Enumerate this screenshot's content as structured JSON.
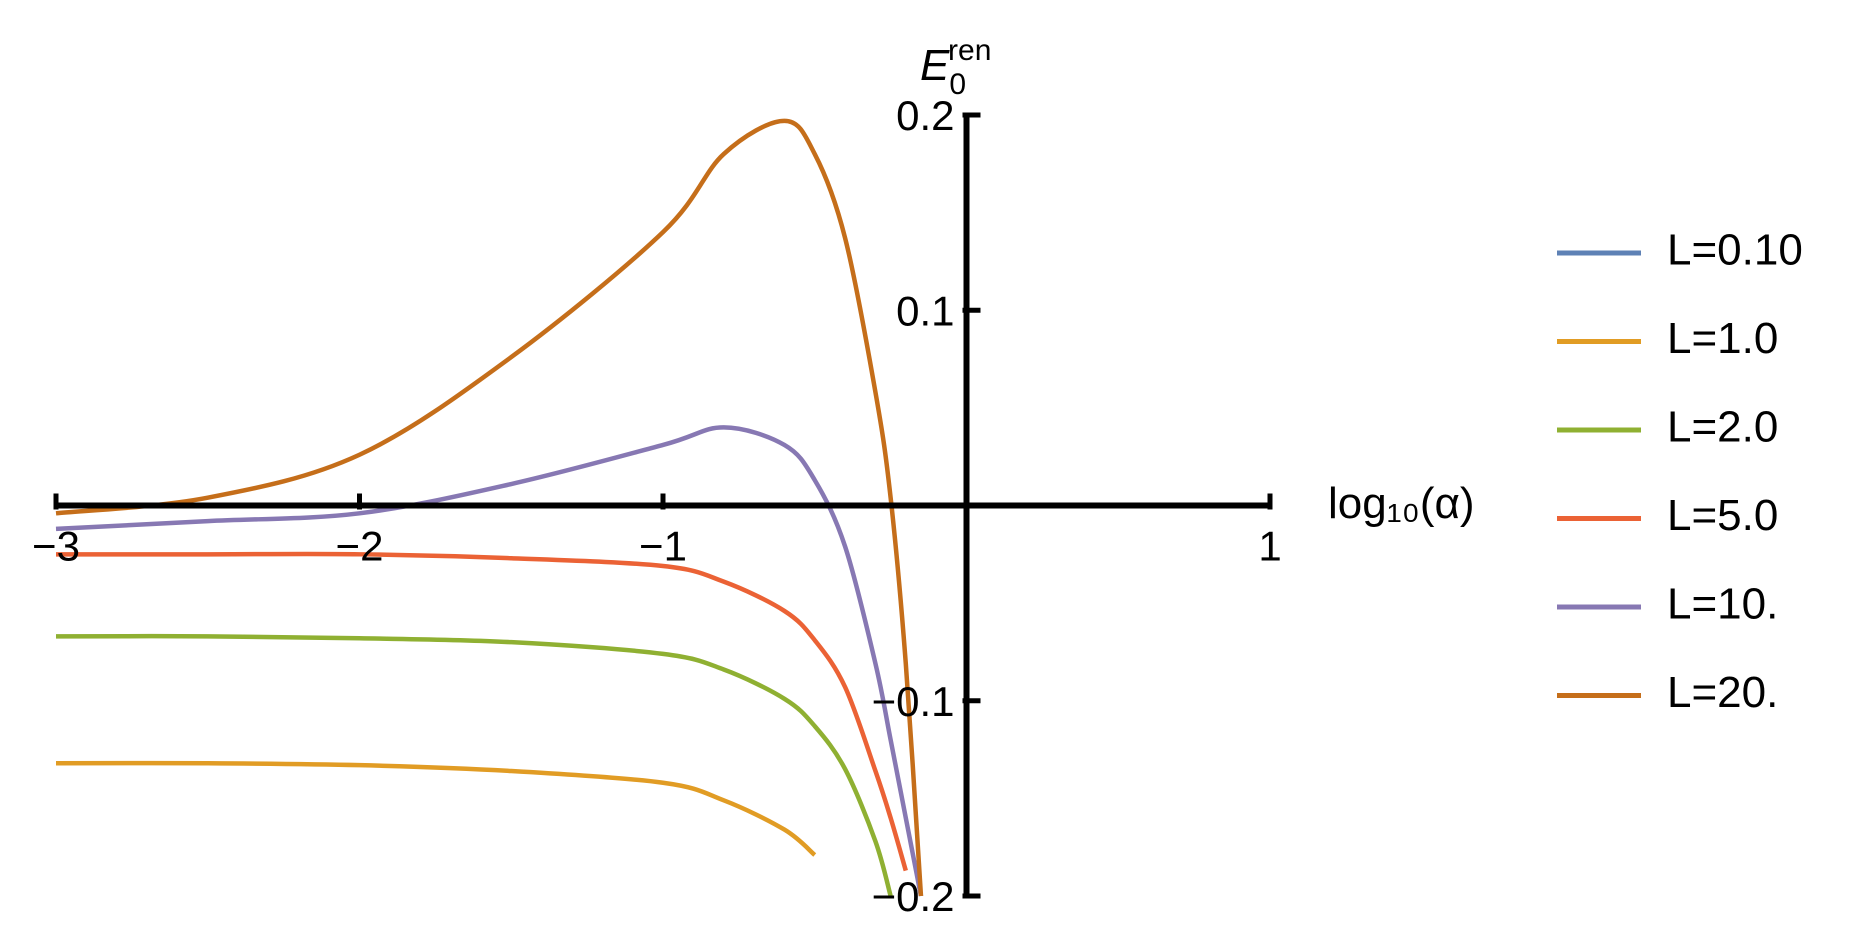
{
  "chart_data": {
    "type": "line",
    "xlabel": "log₁₀(α)",
    "ylabel": {
      "symbol": "E",
      "sub": "0",
      "sup": "ren"
    },
    "x": [
      -3,
      -2.5,
      -2,
      -1.5,
      -1,
      -0.8,
      -0.6,
      -0.5,
      -0.4,
      -0.3,
      -0.25,
      -0.2,
      -0.15
    ],
    "series": [
      {
        "name": "L=0.10",
        "color": "#5e81b5",
        "values": [
          null,
          null,
          null,
          null,
          null,
          null,
          null,
          null,
          null,
          null,
          null,
          null,
          null
        ]
      },
      {
        "name": "L=1.0",
        "color": "#e19c24",
        "values": [
          -0.132,
          -0.132,
          -0.133,
          -0.136,
          -0.142,
          -0.151,
          -0.166,
          -0.179,
          null,
          null,
          null,
          null,
          null
        ]
      },
      {
        "name": "L=2.0",
        "color": "#8fb032",
        "values": [
          -0.067,
          -0.067,
          -0.068,
          -0.07,
          -0.076,
          -0.084,
          -0.099,
          -0.113,
          -0.135,
          -0.172,
          -0.2,
          null,
          null
        ]
      },
      {
        "name": "L=5.0",
        "color": "#eb6235",
        "values": [
          -0.025,
          -0.025,
          -0.025,
          -0.027,
          -0.031,
          -0.039,
          -0.054,
          -0.069,
          -0.093,
          -0.136,
          -0.16,
          -0.187,
          null
        ]
      },
      {
        "name": "L=10.",
        "color": "#8778b3",
        "values": [
          -0.012,
          -0.008,
          -0.004,
          0.011,
          0.031,
          0.04,
          0.031,
          0.013,
          -0.021,
          -0.081,
          -0.12,
          -0.16,
          -0.2
        ]
      },
      {
        "name": "L=20.",
        "color": "#c56e1a",
        "values": [
          -0.004,
          0.004,
          0.026,
          0.076,
          0.14,
          0.18,
          0.197,
          0.18,
          0.137,
          0.058,
          0.004,
          -0.081,
          -0.2
        ]
      }
    ],
    "xlim": [
      -3,
      1
    ],
    "ylim": [
      -0.2,
      0.2
    ],
    "xticks": [
      {
        "value": -3,
        "label": "−3"
      },
      {
        "value": -2,
        "label": "−2"
      },
      {
        "value": -1,
        "label": "−1"
      },
      1
    ],
    "yticks": [
      {
        "value": -0.2,
        "label": "−0.2"
      },
      {
        "value": -0.1,
        "label": "−0.1"
      },
      0.1,
      0.2
    ],
    "legend": "right"
  }
}
